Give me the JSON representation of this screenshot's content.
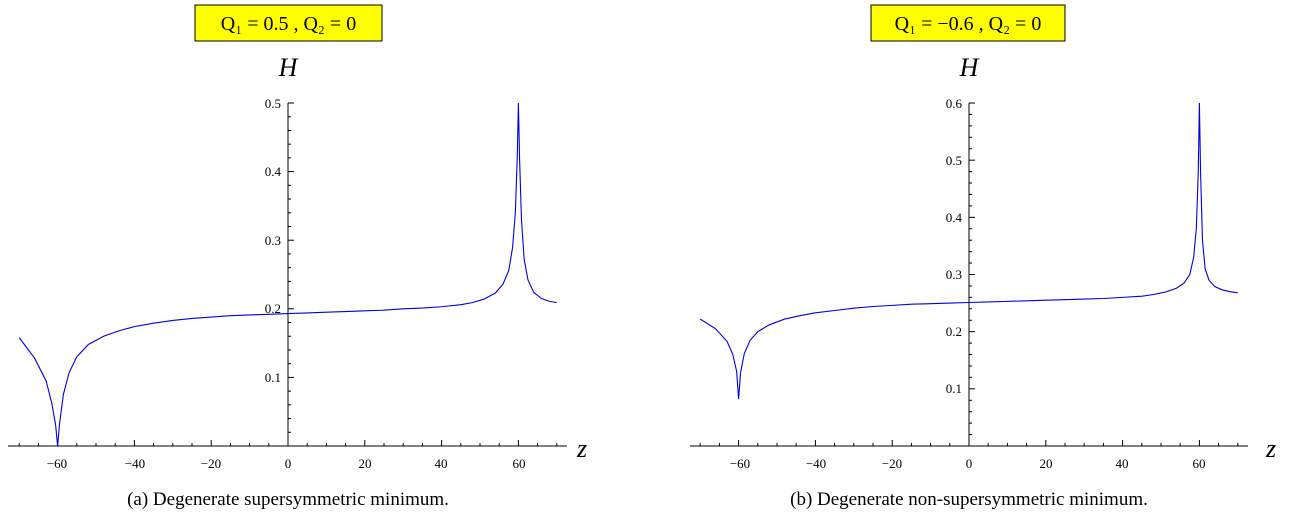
{
  "chart_data": [
    {
      "type": "line",
      "title": "Q₁ = 0.5 , Q₂ = 0",
      "xlabel": "z",
      "ylabel": "H",
      "xlim": [
        -71,
        71
      ],
      "ylim": [
        0,
        0.5
      ],
      "xticks": [
        "−60",
        "−40",
        "−20",
        "0",
        "20",
        "40",
        "60"
      ],
      "yticks": [
        "0.1",
        "0.2",
        "0.3",
        "0.4",
        "0.5"
      ],
      "x": [
        -70,
        -66,
        -63,
        -61.5,
        -60.5,
        -60,
        -59.5,
        -58.5,
        -57,
        -55,
        -52,
        -48,
        -44,
        -40,
        -35,
        -30,
        -25,
        -20,
        -15,
        -10,
        -5,
        0,
        5,
        10,
        15,
        20,
        25,
        30,
        35,
        40,
        45,
        48,
        51,
        54,
        56,
        57.5,
        58.5,
        59.2,
        59.7,
        60,
        60.3,
        60.8,
        61.5,
        62.5,
        64,
        66,
        68,
        70
      ],
      "series": [
        {
          "color": "#0000dd",
          "values": [
            0.158,
            0.128,
            0.095,
            0.062,
            0.03,
            0.0,
            0.032,
            0.075,
            0.107,
            0.13,
            0.148,
            0.16,
            0.168,
            0.174,
            0.179,
            0.183,
            0.186,
            0.188,
            0.19,
            0.191,
            0.192,
            0.193,
            0.194,
            0.195,
            0.196,
            0.197,
            0.198,
            0.2,
            0.201,
            0.203,
            0.206,
            0.209,
            0.214,
            0.223,
            0.236,
            0.256,
            0.29,
            0.34,
            0.42,
            0.5,
            0.42,
            0.33,
            0.272,
            0.242,
            0.224,
            0.215,
            0.211,
            0.209
          ]
        }
      ],
      "caption": "(a) Degenerate supersymmetric minimum."
    },
    {
      "type": "line",
      "title": "Q₁ = −0.6 , Q₂ = 0",
      "xlabel": "z",
      "ylabel": "H",
      "xlim": [
        -71,
        71
      ],
      "ylim": [
        0,
        0.6
      ],
      "xticks": [
        "−60",
        "−40",
        "−20",
        "0",
        "20",
        "40",
        "60"
      ],
      "yticks": [
        "0.1",
        "0.2",
        "0.3",
        "0.4",
        "0.5",
        "0.6"
      ],
      "x": [
        -70,
        -66,
        -63,
        -61.5,
        -60.5,
        -60,
        -59.5,
        -58.5,
        -57,
        -55,
        -52,
        -48,
        -44,
        -40,
        -35,
        -30,
        -25,
        -20,
        -15,
        -10,
        -5,
        0,
        5,
        10,
        15,
        20,
        25,
        30,
        35,
        40,
        45,
        48,
        51,
        54,
        56,
        57.5,
        58.5,
        59.2,
        59.7,
        60,
        60.3,
        60.8,
        61.5,
        62.5,
        64,
        66,
        68,
        70
      ],
      "series": [
        {
          "color": "#0000dd",
          "values": [
            0.222,
            0.205,
            0.183,
            0.16,
            0.13,
            0.082,
            0.128,
            0.162,
            0.185,
            0.2,
            0.212,
            0.222,
            0.228,
            0.233,
            0.237,
            0.241,
            0.244,
            0.246,
            0.248,
            0.249,
            0.25,
            0.251,
            0.252,
            0.253,
            0.254,
            0.255,
            0.256,
            0.257,
            0.258,
            0.26,
            0.262,
            0.265,
            0.269,
            0.276,
            0.285,
            0.3,
            0.33,
            0.38,
            0.48,
            0.6,
            0.48,
            0.36,
            0.31,
            0.29,
            0.279,
            0.273,
            0.27,
            0.268
          ]
        }
      ],
      "caption": "(b) Degenerate non-supersymmetric minimum."
    }
  ]
}
